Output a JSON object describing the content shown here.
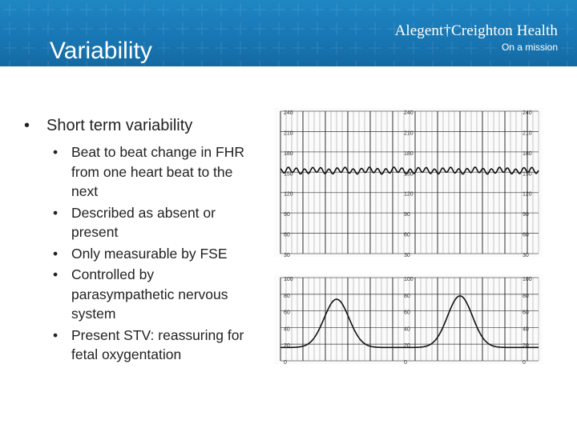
{
  "slide": {
    "title": "Variability"
  },
  "brand": {
    "name": "Alegent†Creighton Health",
    "tagline": "On a mission"
  },
  "bullets": {
    "main": "Short term variability",
    "sub": [
      "Beat to beat change in FHR from one heart beat to the next",
      "Described as absent or present",
      "Only measurable by FSE",
      "Controlled by parasympathetic nervous system",
      "Present STV: reassuring for fetal oxygentation"
    ]
  },
  "tracing": {
    "fhr_scale_labels": [
      "240",
      "210",
      "180",
      "150",
      "120",
      "90",
      "60",
      "30"
    ],
    "uc_scale_labels": [
      "100",
      "80",
      "60",
      "40",
      "20",
      "0"
    ],
    "colors": {
      "grid": "#222222",
      "trace": "#111111",
      "header_blue": "#1877b4"
    }
  }
}
